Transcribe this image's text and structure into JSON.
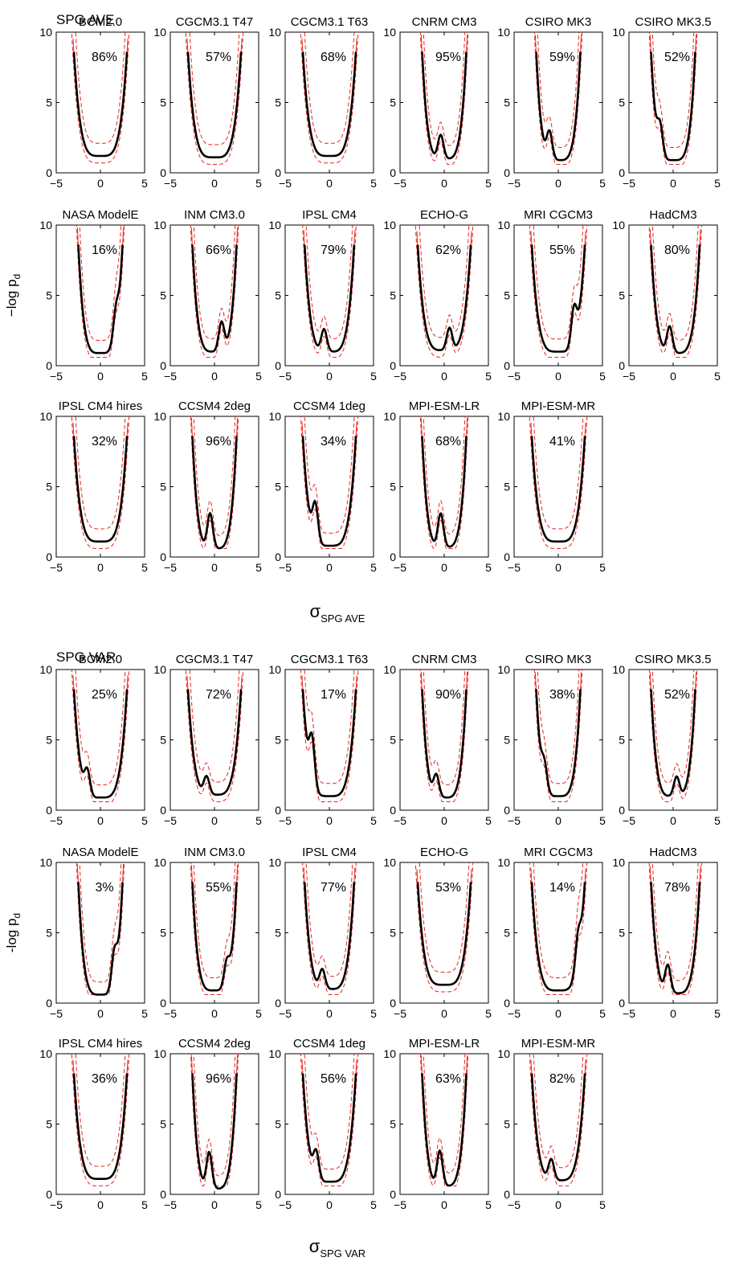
{
  "chart_data": [
    {
      "type": "line",
      "title": "SPG AVE",
      "xlabel": "σ",
      "xlabel_sub": "SPG AVE",
      "ylabel": "−log p",
      "ylabel_sub": "d",
      "xlim": [
        -5,
        5
      ],
      "ylim": [
        0,
        10
      ],
      "xticks": [
        "−5",
        "0",
        "5"
      ],
      "yticks": [
        "0",
        "5",
        "10"
      ],
      "panels": [
        {
          "name": "BCM2.0",
          "pct": "86%",
          "xr": [
            -3,
            3
          ],
          "min": 1.2,
          "bump": null
        },
        {
          "name": "CGCM3.1 T47",
          "pct": "57%",
          "xr": [
            -3,
            3
          ],
          "min": 1.1,
          "bump": null
        },
        {
          "name": "CGCM3.1 T63",
          "pct": "68%",
          "xr": [
            -3,
            3
          ],
          "min": 1.2,
          "bump": null
        },
        {
          "name": "CNRM CM3",
          "pct": "95%",
          "xr": [
            -2.5,
            2.5
          ],
          "min": 1.0,
          "bump": [
            -0.4,
            1.7
          ]
        },
        {
          "name": "CSIRO MK3",
          "pct": "59%",
          "xr": [
            -2.5,
            2.5
          ],
          "min": 0.9,
          "bump": [
            -1.0,
            2.0
          ]
        },
        {
          "name": "CSIRO MK3.5",
          "pct": "52%",
          "xr": [
            -2.5,
            2.5
          ],
          "min": 0.9,
          "bump": [
            -1.5,
            2.2
          ]
        },
        {
          "name": "NASA ModelE",
          "pct": "16%",
          "xr": [
            -2.5,
            2.5
          ],
          "min": 0.9,
          "bump": [
            1.8,
            2.3
          ]
        },
        {
          "name": "INM CM3.0",
          "pct": "66%",
          "xr": [
            -2.5,
            2.5
          ],
          "min": 1.0,
          "bump": [
            0.8,
            2.1
          ]
        },
        {
          "name": "IPSL CM4",
          "pct": "79%",
          "xr": [
            -2.8,
            2.8
          ],
          "min": 1.0,
          "bump": [
            -0.6,
            1.6
          ]
        },
        {
          "name": "ECHO-G",
          "pct": "62%",
          "xr": [
            -3,
            3
          ],
          "min": 1.1,
          "bump": [
            0.6,
            1.6
          ]
        },
        {
          "name": "MRI CGCM3",
          "pct": "55%",
          "xr": [
            -3,
            3
          ],
          "min": 1.0,
          "bump": [
            1.8,
            2.8
          ]
        },
        {
          "name": "HadCM3",
          "pct": "80%",
          "xr": [
            -2.5,
            3
          ],
          "min": 0.9,
          "bump": [
            -0.4,
            1.9
          ]
        },
        {
          "name": "IPSL CM4 hires",
          "pct": "32%",
          "xr": [
            -3,
            3
          ],
          "min": 1.1,
          "bump": null
        },
        {
          "name": "CCSM4 2deg",
          "pct": "96%",
          "xr": [
            -2.5,
            2.5
          ],
          "min": 0.6,
          "bump": [
            -0.5,
            2.5
          ]
        },
        {
          "name": "CCSM4 1deg",
          "pct": "34%",
          "xr": [
            -3,
            3
          ],
          "min": 0.8,
          "bump": [
            -1.6,
            2.8
          ]
        },
        {
          "name": "MPI-ESM-LR",
          "pct": "68%",
          "xr": [
            -2.5,
            2.5
          ],
          "min": 0.7,
          "bump": [
            -0.4,
            2.4
          ]
        },
        {
          "name": "MPI-ESM-MR",
          "pct": "41%",
          "xr": [
            -3,
            3
          ],
          "min": 1.1,
          "bump": null
        }
      ]
    },
    {
      "type": "line",
      "title": "SPG VAR",
      "xlabel": "σ",
      "xlabel_sub": "SPG VAR",
      "ylabel": "-log p",
      "ylabel_sub": "d",
      "xlim": [
        -5,
        5
      ],
      "ylim": [
        0,
        10
      ],
      "xticks": [
        "−5",
        "0",
        "5"
      ],
      "yticks": [
        "0",
        "5",
        "10"
      ],
      "panels": [
        {
          "name": "BCM2.0",
          "pct": "25%",
          "xr": [
            -3,
            3
          ],
          "min": 0.9,
          "bump": [
            -1.5,
            1.8
          ]
        },
        {
          "name": "CGCM3.1 T47",
          "pct": "72%",
          "xr": [
            -3,
            3
          ],
          "min": 1.1,
          "bump": [
            -0.9,
            1.3
          ]
        },
        {
          "name": "CGCM3.1 T63",
          "pct": "17%",
          "xr": [
            -3,
            3
          ],
          "min": 1.0,
          "bump": [
            -2.0,
            3.8
          ]
        },
        {
          "name": "CNRM CM3",
          "pct": "90%",
          "xr": [
            -2.5,
            2.5
          ],
          "min": 0.9,
          "bump": [
            -0.9,
            1.6
          ]
        },
        {
          "name": "CSIRO MK3",
          "pct": "38%",
          "xr": [
            -2.5,
            2.5
          ],
          "min": 1.0,
          "bump": [
            -1.6,
            1.9
          ]
        },
        {
          "name": "CSIRO MK3.5",
          "pct": "52%",
          "xr": [
            -2.5,
            2.5
          ],
          "min": 1.0,
          "bump": [
            0.4,
            1.4
          ]
        },
        {
          "name": "NASA ModelE",
          "pct": "3%",
          "xr": [
            -2.5,
            2.5
          ],
          "min": 0.6,
          "bump": [
            1.6,
            2.6
          ]
        },
        {
          "name": "INM CM3.0",
          "pct": "55%",
          "xr": [
            -2.5,
            2.5
          ],
          "min": 0.9,
          "bump": [
            1.4,
            1.8
          ]
        },
        {
          "name": "IPSL CM4",
          "pct": "77%",
          "xr": [
            -2.8,
            2.8
          ],
          "min": 1.0,
          "bump": [
            -0.8,
            1.4
          ]
        },
        {
          "name": "ECHO-G",
          "pct": "53%",
          "xr": [
            -3,
            3
          ],
          "min": 1.3,
          "bump": null
        },
        {
          "name": "MRI CGCM3",
          "pct": "14%",
          "xr": [
            -3,
            3
          ],
          "min": 0.9,
          "bump": [
            2.3,
            3.0
          ]
        },
        {
          "name": "HadCM3",
          "pct": "78%",
          "xr": [
            -2.5,
            3
          ],
          "min": 0.7,
          "bump": [
            -0.6,
            2.0
          ]
        },
        {
          "name": "IPSL CM4 hires",
          "pct": "36%",
          "xr": [
            -3,
            3
          ],
          "min": 1.1,
          "bump": null
        },
        {
          "name": "CCSM4 2deg",
          "pct": "96%",
          "xr": [
            -2.5,
            2.5
          ],
          "min": 0.4,
          "bump": [
            -0.6,
            2.6
          ]
        },
        {
          "name": "CCSM4 1deg",
          "pct": "56%",
          "xr": [
            -3,
            3
          ],
          "min": 0.9,
          "bump": [
            -1.5,
            2.0
          ]
        },
        {
          "name": "MPI-ESM-LR",
          "pct": "63%",
          "xr": [
            -2.5,
            2.5
          ],
          "min": 0.6,
          "bump": [
            -0.5,
            2.5
          ]
        },
        {
          "name": "MPI-ESM-MR",
          "pct": "82%",
          "xr": [
            -3,
            3
          ],
          "min": 1.0,
          "bump": [
            -0.8,
            1.5
          ]
        }
      ]
    }
  ],
  "colors": {
    "main": "#000000",
    "band": "#e8251d",
    "axis": "#000000"
  }
}
